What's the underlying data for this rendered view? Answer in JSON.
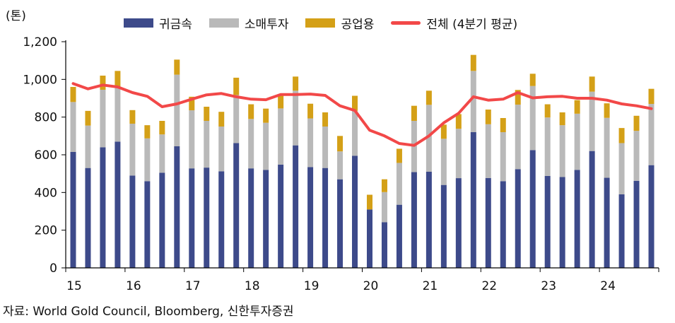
{
  "chart_data": {
    "type": "bar",
    "stacked": true,
    "unit_label": "(톤)",
    "yticks": [
      0,
      200,
      400,
      600,
      800,
      1000,
      1200
    ],
    "ytick_labels": [
      "0",
      "200",
      "400",
      "600",
      "800",
      "1,000",
      "1,200"
    ],
    "ylim": [
      0,
      1200
    ],
    "year_labels": [
      "15",
      "16",
      "17",
      "18",
      "19",
      "20",
      "21",
      "22",
      "23",
      "24"
    ],
    "categories": [
      "15Q1",
      "15Q2",
      "15Q3",
      "15Q4",
      "16Q1",
      "16Q2",
      "16Q3",
      "16Q4",
      "17Q1",
      "17Q2",
      "17Q3",
      "17Q4",
      "18Q1",
      "18Q2",
      "18Q3",
      "18Q4",
      "19Q1",
      "19Q2",
      "19Q3",
      "19Q4",
      "20Q1",
      "20Q2",
      "20Q3",
      "20Q4",
      "21Q1",
      "21Q2",
      "21Q3",
      "21Q4",
      "22Q1",
      "22Q2",
      "22Q3",
      "22Q4",
      "23Q1",
      "23Q2",
      "23Q3",
      "23Q4",
      "24Q1",
      "24Q2",
      "24Q3",
      "24Q4"
    ],
    "series": [
      {
        "name": "귀금속",
        "kind": "bar",
        "color": "#3d4a8a",
        "values": [
          615,
          530,
          640,
          670,
          490,
          460,
          505,
          645,
          528,
          532,
          512,
          662,
          528,
          520,
          548,
          650,
          535,
          530,
          470,
          595,
          310,
          242,
          335,
          508,
          510,
          440,
          476,
          720,
          477,
          460,
          524,
          625,
          488,
          482,
          520,
          620,
          478,
          390,
          462,
          545
        ]
      },
      {
        "name": "소매투자",
        "kind": "bar",
        "color": "#b9b9b9",
        "values": [
          265,
          225,
          305,
          290,
          275,
          227,
          203,
          380,
          308,
          248,
          238,
          255,
          262,
          250,
          298,
          290,
          258,
          220,
          148,
          238,
          0,
          160,
          222,
          272,
          355,
          245,
          262,
          325,
          285,
          260,
          342,
          340,
          310,
          275,
          298,
          315,
          318,
          272,
          265,
          325
        ]
      },
      {
        "name": "공업용",
        "kind": "bar",
        "color": "#d4a017",
        "values": [
          80,
          78,
          75,
          85,
          72,
          70,
          72,
          80,
          72,
          75,
          78,
          92,
          78,
          75,
          72,
          75,
          78,
          75,
          82,
          80,
          78,
          68,
          75,
          80,
          75,
          75,
          78,
          85,
          78,
          75,
          78,
          65,
          70,
          68,
          72,
          80,
          77,
          80,
          80,
          80
        ]
      },
      {
        "name": "전체 (4분기 평균)",
        "kind": "line",
        "color": "#f24848",
        "values": [
          978,
          950,
          970,
          960,
          930,
          910,
          855,
          870,
          895,
          918,
          925,
          908,
          895,
          892,
          920,
          920,
          922,
          915,
          860,
          835,
          730,
          700,
          660,
          650,
          700,
          770,
          820,
          908,
          890,
          895,
          930,
          902,
          908,
          910,
          900,
          900,
          890,
          870,
          860,
          845
        ]
      }
    ]
  },
  "source_text": "자료: World Gold Council, Bloomberg, 신한투자증권"
}
